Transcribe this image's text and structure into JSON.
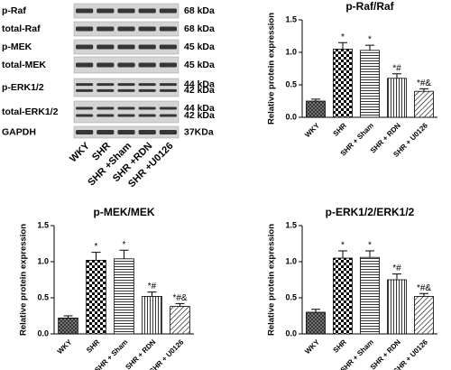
{
  "blot": {
    "rows": [
      {
        "label": "p-Raf",
        "kda": [
          "68 kDa"
        ]
      },
      {
        "label": "total-Raf",
        "kda": [
          "68 kDa"
        ]
      },
      {
        "label": "p-MEK",
        "kda": [
          "45 kDa"
        ]
      },
      {
        "label": "total-MEK",
        "kda": [
          "45 kDa"
        ]
      },
      {
        "label": "p-ERK1/2",
        "kda": [
          "44 kDa",
          "42 kDa"
        ]
      },
      {
        "label": "total-ERK1/2",
        "kda": [
          "44 kDa",
          "42 kDa"
        ]
      },
      {
        "label": "GAPDH",
        "kda": [
          "37KDa"
        ]
      }
    ],
    "lanes": [
      "WKY",
      "SHR",
      "SHR +Sham",
      "SHR +RDN",
      "SHR +U0126"
    ]
  },
  "chart_data": [
    {
      "type": "bar",
      "title": "p-Raf/Raf",
      "ylabel": "Relative protein expression",
      "categories": [
        "WKY",
        "SHR",
        "SHR + Sham",
        "SHR + RDN",
        "SHR + U0126"
      ],
      "values": [
        0.25,
        1.05,
        1.03,
        0.6,
        0.4
      ],
      "errors": [
        0.03,
        0.1,
        0.08,
        0.07,
        0.04
      ],
      "annotations": [
        null,
        "*",
        "*",
        "*#",
        "*#&"
      ],
      "ylim": [
        0,
        1.5
      ],
      "yticks": [
        {
          "value": 0,
          "label": "0.0"
        },
        0.5,
        {
          "value": 1,
          "label": "1.0"
        },
        1.5
      ]
    },
    {
      "type": "bar",
      "title": "p-MEK/MEK",
      "ylabel": "Relative protein expression",
      "categories": [
        "WKY",
        "SHR",
        "SHR + Sham",
        "SHR + RDN",
        "SHR + U0126"
      ],
      "values": [
        0.22,
        1.02,
        1.04,
        0.52,
        0.38
      ],
      "errors": [
        0.03,
        0.11,
        0.12,
        0.06,
        0.04
      ],
      "annotations": [
        null,
        "*",
        "*",
        "*#",
        "*#&"
      ],
      "ylim": [
        0,
        1.5
      ],
      "yticks": [
        {
          "value": 0,
          "label": "0.0"
        },
        0.5,
        {
          "value": 1,
          "label": "1.0"
        },
        1.5
      ]
    },
    {
      "type": "bar",
      "title": "p-ERK1/2/ERK1/2",
      "ylabel": "Relative protein expression",
      "categories": [
        "WKY",
        "SHR",
        "SHR + Sham",
        "SHR + RDN",
        "SHR + U0126"
      ],
      "values": [
        0.3,
        1.05,
        1.06,
        0.75,
        0.52
      ],
      "errors": [
        0.04,
        0.1,
        0.09,
        0.08,
        0.04
      ],
      "annotations": [
        null,
        "*",
        "*",
        "*#",
        "*#&"
      ],
      "ylim": [
        0,
        1.5
      ],
      "yticks": [
        {
          "value": 0,
          "label": "0.0"
        },
        0.5,
        {
          "value": 1,
          "label": "1.0"
        },
        1.5
      ]
    }
  ]
}
